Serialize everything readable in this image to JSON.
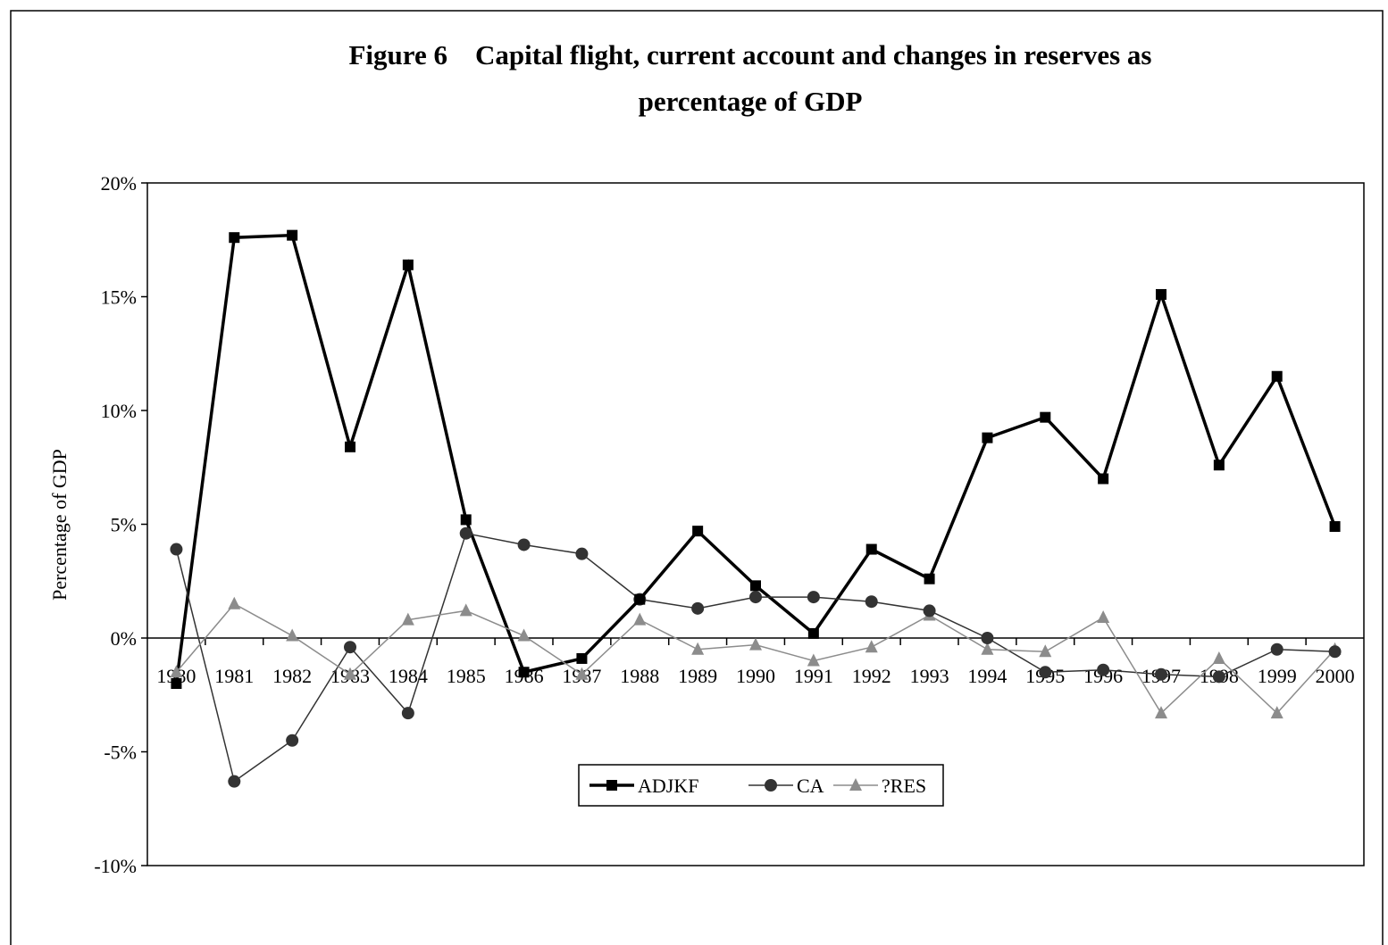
{
  "chart_data": {
    "type": "line",
    "title": [
      "Figure 6    Capital flight, current account and changes in reserves as",
      "percentage of GDP"
    ],
    "y_label": "Percentage of GDP",
    "categories": [
      "1980",
      "1981",
      "1982",
      "1983",
      "1984",
      "1985",
      "1986",
      "1987",
      "1988",
      "1989",
      "1990",
      "1991",
      "1992",
      "1993",
      "1994",
      "1995",
      "1996",
      "1997",
      "1998",
      "1999",
      "2000"
    ],
    "series": [
      {
        "name": "ADJKF",
        "color": "#000000",
        "marker": "square",
        "values": [
          -2.0,
          17.6,
          17.7,
          8.4,
          16.4,
          5.2,
          -1.5,
          -0.9,
          1.7,
          4.7,
          2.3,
          0.2,
          3.9,
          2.6,
          8.8,
          9.7,
          7.0,
          15.1,
          7.6,
          11.5,
          4.9
        ]
      },
      {
        "name": "CA",
        "color": "#333333",
        "marker": "circle",
        "values": [
          3.9,
          -6.3,
          -4.5,
          -0.4,
          -3.3,
          4.6,
          4.1,
          3.7,
          1.7,
          1.3,
          1.8,
          1.8,
          1.6,
          1.2,
          0.0,
          -1.5,
          -1.4,
          -1.6,
          -1.7,
          -0.5,
          -0.6
        ]
      },
      {
        "name": "?RES",
        "color": "#8c8c8c",
        "marker": "triangle",
        "values": [
          -1.5,
          1.5,
          0.1,
          -1.6,
          0.8,
          1.2,
          0.1,
          -1.6,
          0.8,
          -0.5,
          -0.3,
          -1.0,
          -0.4,
          1.0,
          -0.5,
          -0.6,
          0.9,
          -3.3,
          -0.9,
          -3.3,
          -0.5
        ]
      }
    ],
    "ylim": [
      -10,
      20
    ],
    "yticks": [
      {
        "value": -10,
        "label": "-10%"
      },
      {
        "value": -5,
        "label": "-5%"
      },
      {
        "value": 0,
        "label": "0%"
      },
      {
        "value": 5,
        "label": "5%"
      },
      {
        "value": 10,
        "label": "10%"
      },
      {
        "value": 15,
        "label": "15%"
      },
      {
        "value": 20,
        "label": "20%"
      }
    ],
    "legend": "bottom",
    "grid": false
  }
}
